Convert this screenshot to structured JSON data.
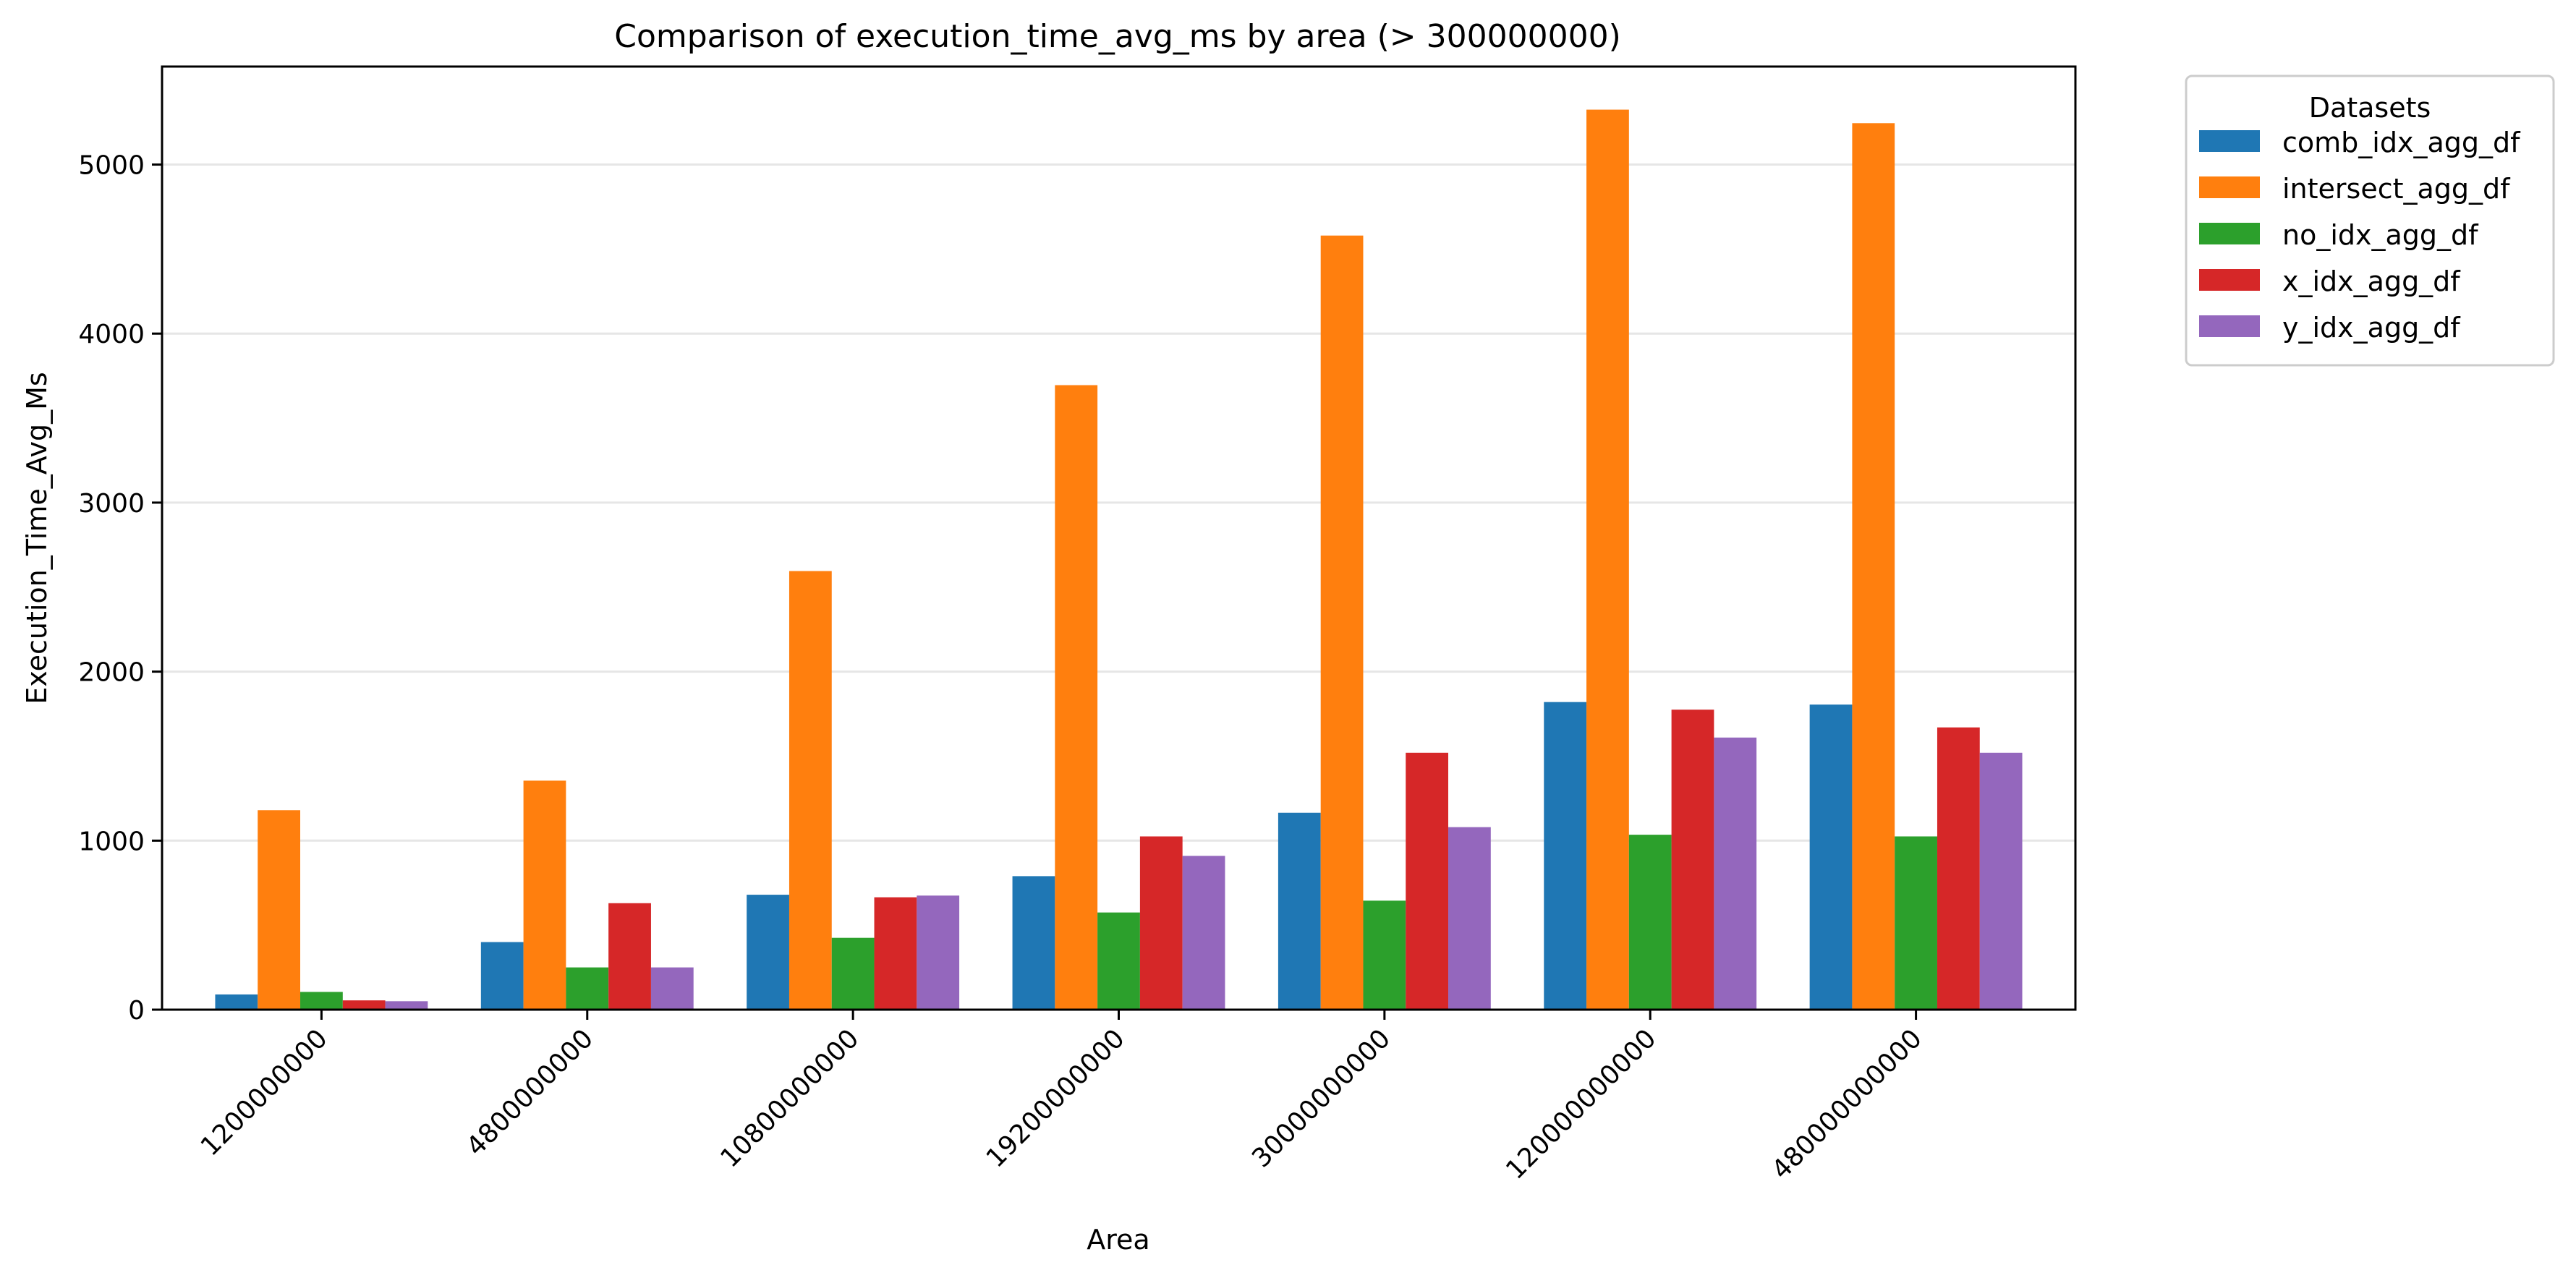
{
  "chart_data": {
    "type": "bar",
    "title": "Comparison of execution_time_avg_ms by area (> 300000000)",
    "xlabel": "Area",
    "ylabel": "Execution_Time_Avg_Ms",
    "categories": [
      "1200000000",
      "4800000000",
      "10800000000",
      "19200000000",
      "30000000000",
      "120000000000",
      "480000000000"
    ],
    "series": [
      {
        "name": "comb_idx_agg_df",
        "color": "#1f77b4",
        "values": [
          90,
          400,
          680,
          790,
          1165,
          1820,
          1805
        ]
      },
      {
        "name": "intersect_agg_df",
        "color": "#ff7f0e",
        "values": [
          1180,
          1355,
          2595,
          3695,
          4580,
          5325,
          5245
        ]
      },
      {
        "name": "no_idx_agg_df",
        "color": "#2ca02c",
        "values": [
          105,
          250,
          425,
          575,
          645,
          1035,
          1025
        ]
      },
      {
        "name": "x_idx_agg_df",
        "color": "#d62728",
        "values": [
          55,
          630,
          665,
          1025,
          1520,
          1775,
          1670
        ]
      },
      {
        "name": "y_idx_agg_df",
        "color": "#9467bd",
        "values": [
          50,
          250,
          675,
          910,
          1080,
          1610,
          1520
        ]
      }
    ],
    "ylim": [
      0,
      5580
    ],
    "yticks": [
      0,
      1000,
      2000,
      3000,
      4000,
      5000
    ],
    "grid": "horizontal",
    "legend_title": "Datasets",
    "legend_placement": "outside-top-right"
  }
}
